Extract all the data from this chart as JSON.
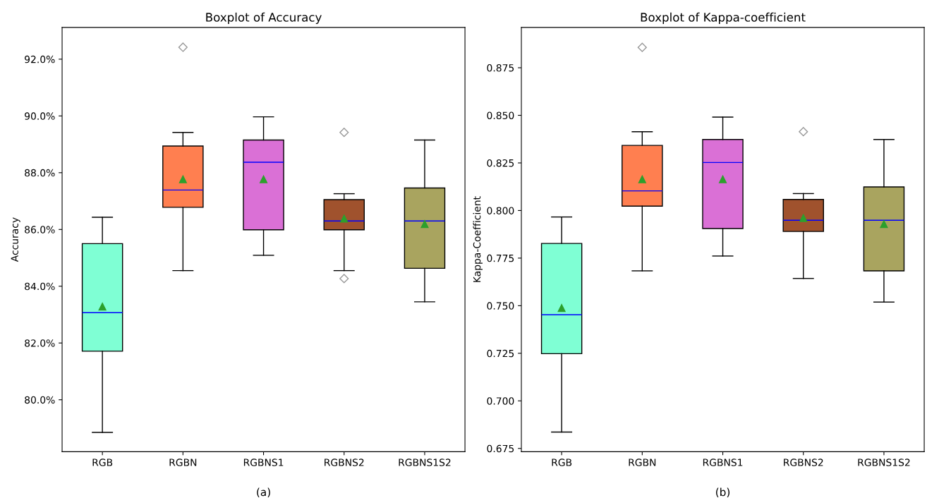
{
  "chart_data": [
    {
      "type": "box",
      "title": "Boxplot of Accuracy",
      "ylabel": "Accuracy",
      "annotations": [
        "(a)"
      ],
      "categories": [
        "RGB",
        "RGBN",
        "RGBNS1",
        "RGBNS2",
        "RGBNS1S2"
      ],
      "colors": [
        "#7fffd4",
        "#ff7f50",
        "#da70d6",
        "#a0522d",
        "#a9a45f"
      ],
      "boxes": [
        {
          "low": 78.85,
          "q1": 81.71,
          "median": 83.07,
          "q3": 85.5,
          "high": 86.43,
          "mean": 83.28
        },
        {
          "low": 84.55,
          "q1": 86.78,
          "median": 87.39,
          "q3": 88.94,
          "high": 89.42,
          "mean": 87.77,
          "outliers": [
            92.42
          ]
        },
        {
          "low": 85.09,
          "q1": 85.99,
          "median": 88.37,
          "q3": 89.15,
          "high": 89.97,
          "mean": 87.77
        },
        {
          "low": 84.55,
          "q1": 85.99,
          "median": 86.3,
          "q3": 87.05,
          "high": 87.26,
          "mean": 86.38,
          "outliers": [
            89.42,
            84.27
          ]
        },
        {
          "low": 83.45,
          "q1": 84.63,
          "median": 86.3,
          "q3": 87.46,
          "high": 89.15,
          "mean": 86.19
        }
      ],
      "ylim": [
        78.17,
        93.12
      ],
      "yticks": [
        {
          "value": 80,
          "label": "80.0%"
        },
        {
          "value": 82,
          "label": "82.0%"
        },
        {
          "value": 84,
          "label": "84.0%"
        },
        {
          "value": 86,
          "label": "86.0%"
        },
        {
          "value": 88,
          "label": "88.0%"
        },
        {
          "value": 90,
          "label": "90.0%"
        },
        {
          "value": 92,
          "label": "92.0%"
        }
      ],
      "grid": false
    },
    {
      "type": "box",
      "title": "Boxplot of Kappa-coefficient",
      "ylabel": "Kappa-Coefficient",
      "annotations": [
        "(b)"
      ],
      "categories": [
        "RGB",
        "RGBN",
        "RGBNS1",
        "RGBNS2",
        "RGBNS1S2"
      ],
      "colors": [
        "#7fffd4",
        "#ff7f50",
        "#da70d6",
        "#a0522d",
        "#a9a45f"
      ],
      "boxes": [
        {
          "low": 0.6836,
          "q1": 0.7248,
          "median": 0.7452,
          "q3": 0.7827,
          "high": 0.7966,
          "mean": 0.7488
        },
        {
          "low": 0.7683,
          "q1": 0.8023,
          "median": 0.8103,
          "q3": 0.8342,
          "high": 0.8414,
          "mean": 0.8164,
          "outliers": [
            0.8857
          ]
        },
        {
          "low": 0.7761,
          "q1": 0.7905,
          "median": 0.8252,
          "q3": 0.8373,
          "high": 0.8491,
          "mean": 0.8164
        },
        {
          "low": 0.7643,
          "q1": 0.789,
          "median": 0.7949,
          "q3": 0.8058,
          "high": 0.8089,
          "mean": 0.796,
          "outliers": [
            0.8414
          ]
        },
        {
          "low": 0.7519,
          "q1": 0.7683,
          "median": 0.7949,
          "q3": 0.8124,
          "high": 0.8373,
          "mean": 0.7929
        }
      ],
      "ylim": [
        0.6733,
        0.8962
      ],
      "yticks": [
        {
          "value": 0.675,
          "label": "0.675"
        },
        {
          "value": 0.7,
          "label": "0.700"
        },
        {
          "value": 0.725,
          "label": "0.725"
        },
        {
          "value": 0.75,
          "label": "0.750"
        },
        {
          "value": 0.775,
          "label": "0.775"
        },
        {
          "value": 0.8,
          "label": "0.800"
        },
        {
          "value": 0.825,
          "label": "0.825"
        },
        {
          "value": 0.85,
          "label": "0.850"
        },
        {
          "value": 0.875,
          "label": "0.875"
        }
      ],
      "grid": false
    }
  ]
}
